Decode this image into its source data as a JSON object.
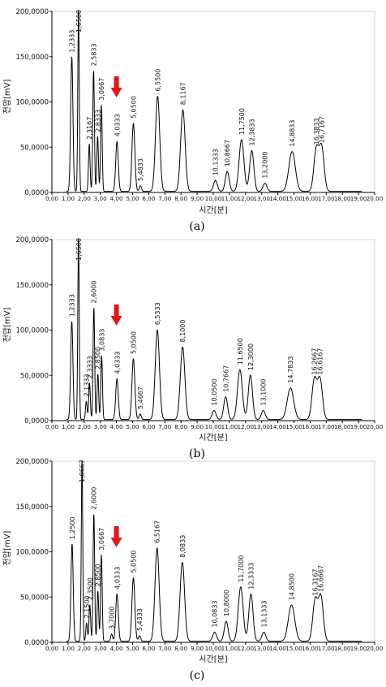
{
  "chart_data": [
    {
      "type": "line",
      "caption": "(a)",
      "xlabel": "시간[분]",
      "ylabel": "전압[mV]",
      "xlim": [
        0,
        20
      ],
      "ylim": [
        0,
        200000
      ],
      "xticks": [
        0.0,
        1.0,
        2.0,
        3.0,
        4.0,
        5.0,
        6.0,
        7.0,
        8.0,
        9.0,
        10.0,
        11.0,
        12.0,
        13.0,
        14.0,
        15.0,
        16.0,
        17.0,
        18.0,
        19.0,
        20.0
      ],
      "xtick_labels": [
        "0,00",
        "1,00",
        "2,00",
        "3,00",
        "4,00",
        "5,00",
        "6,00",
        "7,00",
        "8,00",
        "9,00",
        "10,00",
        "11,00",
        "12,00",
        "13,00",
        "14,00",
        "15,00",
        "16,00",
        "17,00",
        "18,00",
        "19,00",
        "20,00"
      ],
      "yticks": [
        0,
        50000,
        100000,
        150000,
        200000
      ],
      "ytick_labels": [
        "0,0000",
        "50,0000",
        "100,0000",
        "150,0000",
        "200,0000"
      ],
      "arrow_x": 4.0,
      "peaks": [
        {
          "t": 1.2333,
          "label": "1,2333",
          "h": 148000,
          "w": 0.07
        },
        {
          "t": 1.65,
          "label": "1,6500",
          "h": 200000,
          "w": 0.045
        },
        {
          "t": 2.3167,
          "label": "2,3167",
          "h": 52000,
          "w": 0.05
        },
        {
          "t": 2.5833,
          "label": "2,5833",
          "h": 133000,
          "w": 0.05
        },
        {
          "t": 2.8333,
          "label": "2,8333",
          "h": 60000,
          "w": 0.05
        },
        {
          "t": 3.0667,
          "label": "3,0667",
          "h": 95000,
          "w": 0.05
        },
        {
          "t": 4.0333,
          "label": "4,0333",
          "h": 55000,
          "w": 0.08
        },
        {
          "t": 5.05,
          "label": "5,0500",
          "h": 75000,
          "w": 0.09
        },
        {
          "t": 5.4833,
          "label": "5,4833",
          "h": 6000,
          "w": 0.07
        },
        {
          "t": 6.55,
          "label": "6,5500",
          "h": 105000,
          "w": 0.13
        },
        {
          "t": 8.1167,
          "label": "8,1167",
          "h": 90000,
          "w": 0.14
        },
        {
          "t": 10.1333,
          "label": "10,1333",
          "h": 12000,
          "w": 0.12
        },
        {
          "t": 10.8667,
          "label": "10,8667",
          "h": 22000,
          "w": 0.12
        },
        {
          "t": 11.75,
          "label": "11,7500",
          "h": 57000,
          "w": 0.15
        },
        {
          "t": 12.3833,
          "label": "12,3833",
          "h": 45000,
          "w": 0.13
        },
        {
          "t": 13.2,
          "label": "13,2000",
          "h": 9000,
          "w": 0.12
        },
        {
          "t": 14.8833,
          "label": "14,8833",
          "h": 44000,
          "w": 0.2
        },
        {
          "t": 16.3833,
          "label": "16,3833",
          "h": 46000,
          "w": 0.15
        },
        {
          "t": 16.7167,
          "label": "16,7167",
          "h": 48000,
          "w": 0.15
        }
      ]
    },
    {
      "type": "line",
      "caption": "(b)",
      "xlabel": "시간[분]",
      "ylabel": "전압[mV]",
      "xlim": [
        0,
        20
      ],
      "ylim": [
        0,
        200000
      ],
      "xticks": [
        0.0,
        1.0,
        2.0,
        3.0,
        4.0,
        5.0,
        6.0,
        7.0,
        8.0,
        9.0,
        10.0,
        11.0,
        12.0,
        13.0,
        14.0,
        15.0,
        16.0,
        17.0,
        18.0,
        19.0,
        20.0
      ],
      "xtick_labels": [
        "0,00",
        "1,00",
        "2,00",
        "3,00",
        "4,00",
        "5,00",
        "6,00",
        "7,00",
        "8,00",
        "9,00",
        "10,00",
        "11,00",
        "12,00",
        "13,00",
        "14,00",
        "15,00",
        "16,00",
        "17,00",
        "18,00",
        "19,00",
        "20,00"
      ],
      "yticks": [
        0,
        50000,
        100000,
        150000,
        200000
      ],
      "ytick_labels": [
        "0,0000",
        "50,0000",
        "100,0000",
        "150,0000",
        "200,0000"
      ],
      "arrow_x": 4.0,
      "peaks": [
        {
          "t": 1.2333,
          "label": "1,2333",
          "h": 108000,
          "w": 0.07
        },
        {
          "t": 1.65,
          "label": "1,6500",
          "h": 200000,
          "w": 0.045
        },
        {
          "t": 2.1333,
          "label": "2,1333",
          "h": 20000,
          "w": 0.05
        },
        {
          "t": 2.3333,
          "label": "2,3333",
          "h": 40000,
          "w": 0.05
        },
        {
          "t": 2.6,
          "label": "2,6000",
          "h": 123000,
          "w": 0.05
        },
        {
          "t": 2.85,
          "label": "2,8500",
          "h": 50000,
          "w": 0.05
        },
        {
          "t": 3.0833,
          "label": "3,0833",
          "h": 70000,
          "w": 0.05
        },
        {
          "t": 4.0333,
          "label": "4,0333",
          "h": 45000,
          "w": 0.08
        },
        {
          "t": 5.05,
          "label": "5,0500",
          "h": 67000,
          "w": 0.09
        },
        {
          "t": 5.4667,
          "label": "5,4667",
          "h": 6000,
          "w": 0.07
        },
        {
          "t": 6.5333,
          "label": "6,5333",
          "h": 99000,
          "w": 0.13
        },
        {
          "t": 8.1,
          "label": "8,1000",
          "h": 80000,
          "w": 0.14
        },
        {
          "t": 10.05,
          "label": "10,0500",
          "h": 10000,
          "w": 0.12
        },
        {
          "t": 10.7667,
          "label": "10,7667",
          "h": 25000,
          "w": 0.12
        },
        {
          "t": 11.65,
          "label": "11,6500",
          "h": 55000,
          "w": 0.15
        },
        {
          "t": 12.3,
          "label": "12,3000",
          "h": 49000,
          "w": 0.13
        },
        {
          "t": 13.1,
          "label": "13,1000",
          "h": 10000,
          "w": 0.12
        },
        {
          "t": 14.7833,
          "label": "14,7833",
          "h": 35000,
          "w": 0.2
        },
        {
          "t": 16.2667,
          "label": "16,2667",
          "h": 44000,
          "w": 0.15
        },
        {
          "t": 16.6167,
          "label": "16,6167",
          "h": 44000,
          "w": 0.15
        }
      ]
    },
    {
      "type": "line",
      "caption": "(c)",
      "xlabel": "시간[분]",
      "ylabel": "전압[mV]",
      "xlim": [
        0,
        20
      ],
      "ylim": [
        0,
        200000
      ],
      "xticks": [
        0.0,
        1.0,
        2.0,
        3.0,
        4.0,
        5.0,
        6.0,
        7.0,
        8.0,
        9.0,
        10.0,
        11.0,
        12.0,
        13.0,
        14.0,
        15.0,
        16.0,
        17.0,
        18.0,
        19.0,
        20.0
      ],
      "xtick_labels": [
        "0,00",
        "1,00",
        "2,00",
        "3,00",
        "4,00",
        "5,00",
        "6,00",
        "7,00",
        "8,00",
        "9,00",
        "10,00",
        "11,00",
        "12,00",
        "13,00",
        "14,00",
        "15,00",
        "16,00",
        "17,00",
        "18,00",
        "19,00",
        "20,00"
      ],
      "yticks": [
        0,
        50000,
        100000,
        150000,
        200000
      ],
      "ytick_labels": [
        "0,0000",
        "50,0000",
        "100,0000",
        "150,0000",
        "200,0000"
      ],
      "arrow_x": 4.0,
      "peaks": [
        {
          "t": 1.25,
          "label": "1,2500",
          "h": 107000,
          "w": 0.07
        },
        {
          "t": 1.8667,
          "label": "1,8667",
          "h": 200000,
          "w": 0.045
        },
        {
          "t": 2.15,
          "label": "2,1500",
          "h": 20000,
          "w": 0.05
        },
        {
          "t": 2.35,
          "label": "2,3500",
          "h": 40000,
          "w": 0.05
        },
        {
          "t": 2.6,
          "label": "2,6000",
          "h": 140000,
          "w": 0.05
        },
        {
          "t": 2.85,
          "label": "2,8500",
          "h": 55000,
          "w": 0.05
        },
        {
          "t": 3.0667,
          "label": "3,0667",
          "h": 95000,
          "w": 0.05
        },
        {
          "t": 3.7,
          "label": "3,7000",
          "h": 8000,
          "w": 0.06
        },
        {
          "t": 4.0333,
          "label": "4,0333",
          "h": 52000,
          "w": 0.08
        },
        {
          "t": 5.05,
          "label": "5,0500",
          "h": 70000,
          "w": 0.09
        },
        {
          "t": 5.4333,
          "label": "5,4333",
          "h": 6000,
          "w": 0.07
        },
        {
          "t": 6.5167,
          "label": "6,5167",
          "h": 103000,
          "w": 0.13
        },
        {
          "t": 8.0833,
          "label": "8,0833",
          "h": 87000,
          "w": 0.14
        },
        {
          "t": 10.0833,
          "label": "10,0833",
          "h": 10000,
          "w": 0.12
        },
        {
          "t": 10.8,
          "label": "10,8000",
          "h": 22000,
          "w": 0.12
        },
        {
          "t": 11.7,
          "label": "11,7000",
          "h": 60000,
          "w": 0.15
        },
        {
          "t": 12.3333,
          "label": "12,3333",
          "h": 52000,
          "w": 0.13
        },
        {
          "t": 13.1333,
          "label": "13,1333",
          "h": 10000,
          "w": 0.12
        },
        {
          "t": 14.85,
          "label": "14,8500",
          "h": 40000,
          "w": 0.2
        },
        {
          "t": 16.3167,
          "label": "16,3167",
          "h": 45000,
          "w": 0.15
        },
        {
          "t": 16.6667,
          "label": "16,6667",
          "h": 49000,
          "w": 0.15
        }
      ]
    }
  ],
  "colors": {
    "trace": "#000000",
    "axis": "#000000",
    "arrow": "#e8141b"
  }
}
